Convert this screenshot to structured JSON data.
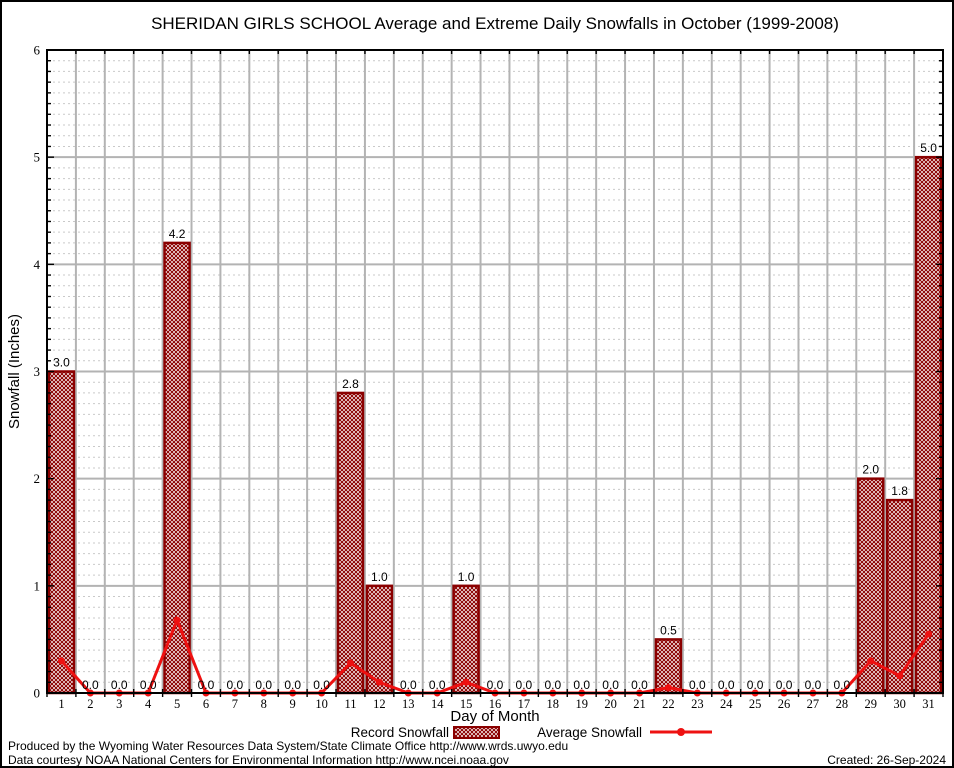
{
  "title": "SHERIDAN GIRLS SCHOOL Average and Extreme Daily Snowfalls in October (1999-2008)",
  "colors": {
    "bar": "#8b0000",
    "line": "#ee1111",
    "grid_major": "#b3b3b3",
    "grid_minor": "#c9c9c9"
  },
  "legend": {
    "record_label": "Record Snowfall",
    "average_label": "Average Snowfall"
  },
  "footer": {
    "line1": "Produced by the Wyoming Water Resources Data System/State Climate Office http://www.wrds.uwyo.edu",
    "line2": "Data courtesy NOAA National Centers for Environmental Information http://www.ncei.noaa.gov",
    "created": "Created: 26-Sep-2024"
  },
  "chart_data": {
    "type": "bar",
    "title": "SHERIDAN GIRLS SCHOOL Average and Extreme Daily Snowfalls in October (1999-2008)",
    "xlabel": "Day of Month",
    "ylabel": "Snowfall (Inches)",
    "ylim": [
      0,
      6
    ],
    "yticks": [
      0,
      1,
      2,
      3,
      4,
      5,
      6
    ],
    "y_minor_step": 0.1,
    "grid": true,
    "legend_position": "bottom",
    "categories": [
      1,
      2,
      3,
      4,
      5,
      6,
      7,
      8,
      9,
      10,
      11,
      12,
      13,
      14,
      15,
      16,
      17,
      18,
      19,
      20,
      21,
      22,
      23,
      24,
      25,
      26,
      27,
      28,
      29,
      30,
      31
    ],
    "series": [
      {
        "name": "Record Snowfall",
        "type": "bar",
        "color": "#8b0000",
        "show_value_labels": true,
        "values": [
          3.0,
          0.0,
          0.0,
          0.0,
          4.2,
          0.0,
          0.0,
          0.0,
          0.0,
          0.0,
          2.8,
          1.0,
          0.0,
          0.0,
          1.0,
          0.0,
          0.0,
          0.0,
          0.0,
          0.0,
          0.0,
          0.5,
          0.0,
          0.0,
          0.0,
          0.0,
          0.0,
          0.0,
          2.0,
          1.8,
          5.0
        ]
      },
      {
        "name": "Average Snowfall",
        "type": "line",
        "color": "#ee1111",
        "values": [
          0.3,
          0.0,
          0.0,
          0.0,
          0.68,
          0.0,
          0.0,
          0.0,
          0.0,
          0.0,
          0.28,
          0.1,
          0.0,
          0.0,
          0.1,
          0.0,
          0.0,
          0.0,
          0.0,
          0.0,
          0.0,
          0.05,
          0.0,
          0.0,
          0.0,
          0.0,
          0.0,
          0.0,
          0.3,
          0.16,
          0.55
        ]
      }
    ]
  }
}
